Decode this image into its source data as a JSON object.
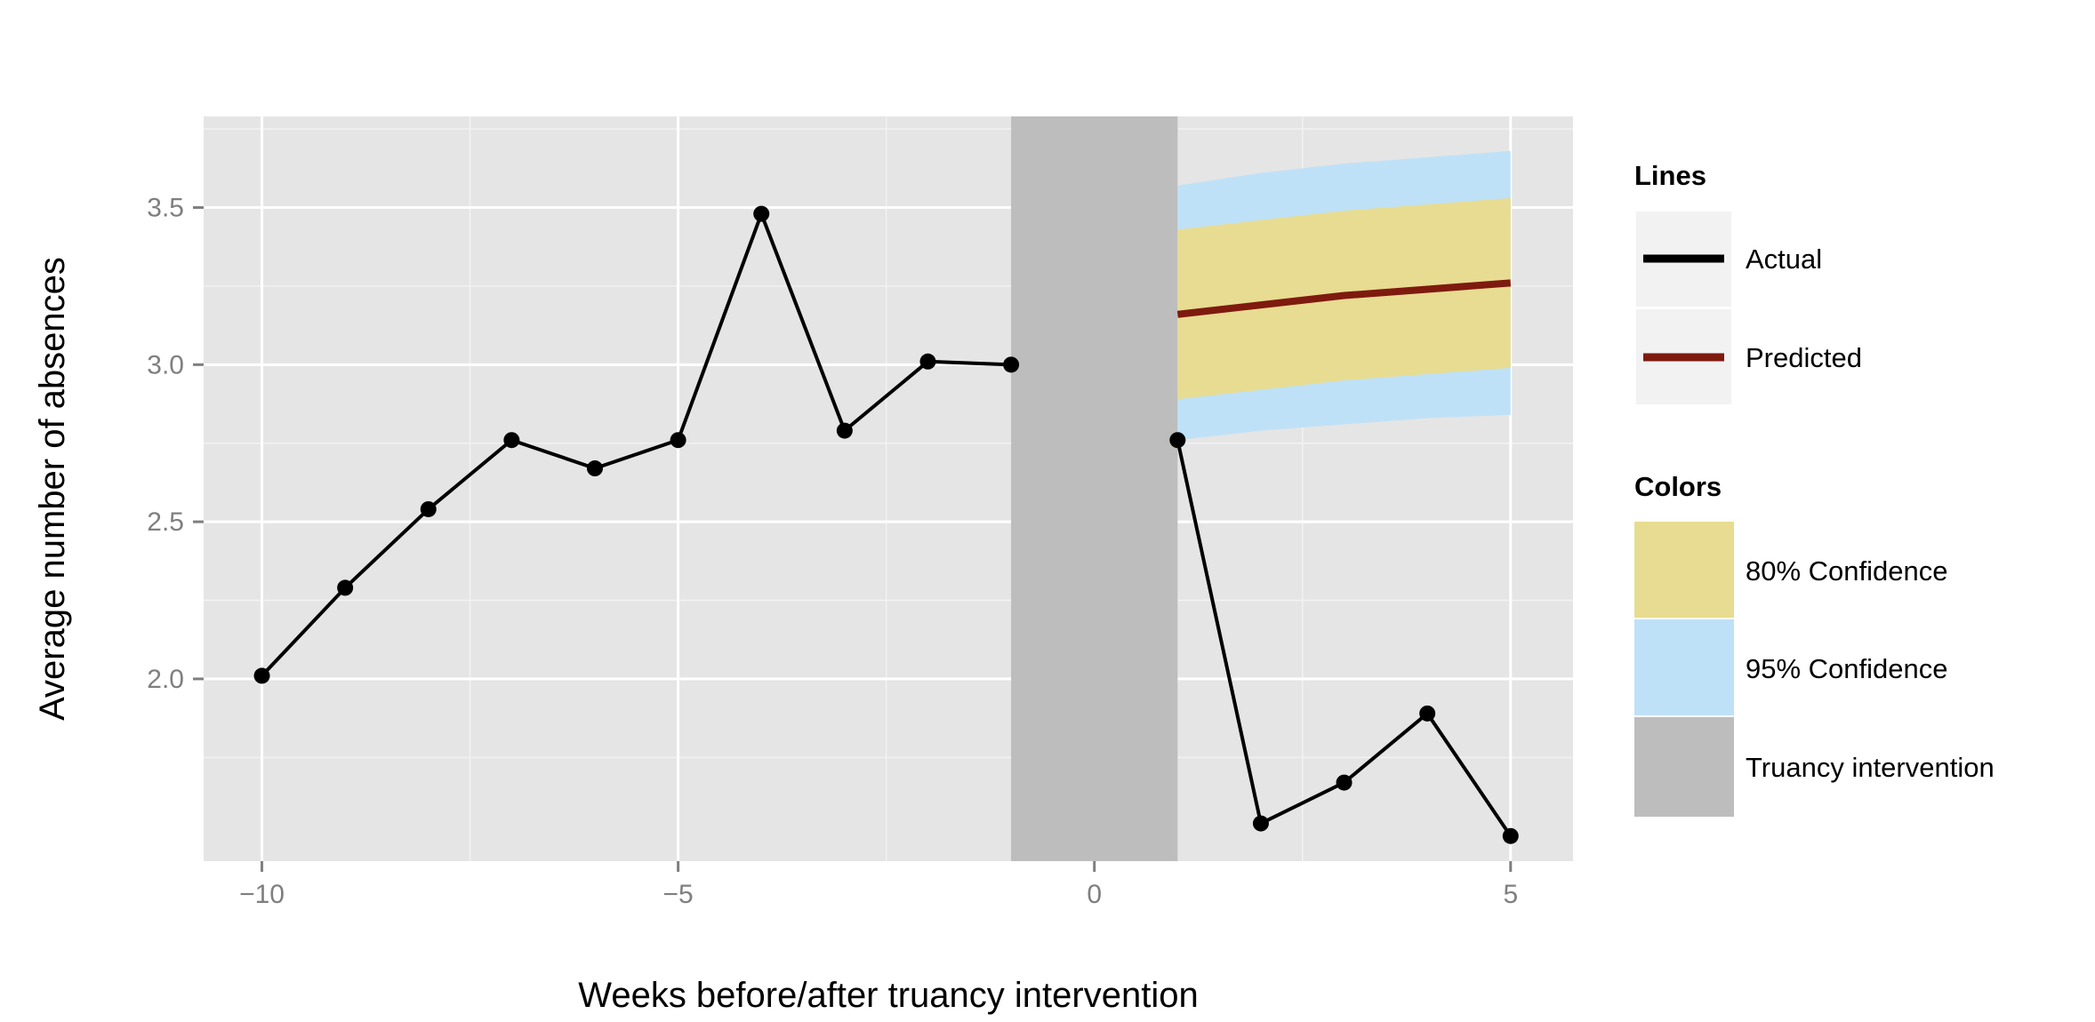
{
  "chart_data": {
    "type": "line",
    "title": "",
    "xlabel": "Weeks before/after truancy intervention",
    "ylabel": "Average number of absences",
    "xlim": [
      -10.7,
      5.75
    ],
    "ylim": [
      1.42,
      3.79
    ],
    "x_ticks": [
      -10,
      -5,
      0,
      5
    ],
    "x_tick_labels": [
      "−10",
      "−5",
      "0",
      "5"
    ],
    "y_ticks": [
      2.0,
      2.5,
      3.0,
      3.5
    ],
    "y_tick_labels": [
      "2.0",
      "2.5",
      "3.0",
      "3.5"
    ],
    "grid": true,
    "legend_placement": "right",
    "intervention_band": {
      "x": [
        -1,
        1
      ],
      "label": "Truancy intervention",
      "color": "#bdbdbd"
    },
    "series": [
      {
        "name": "Actual",
        "color": "#000000",
        "segments": [
          {
            "x": [
              -10,
              -9,
              -8,
              -7,
              -6,
              -5,
              -4,
              -3,
              -2,
              -1
            ],
            "y": [
              2.01,
              2.29,
              2.54,
              2.76,
              2.67,
              2.76,
              3.48,
              2.79,
              3.01,
              3.0
            ]
          },
          {
            "x": [
              1,
              2,
              3,
              4,
              5
            ],
            "y": [
              2.76,
              1.54,
              1.67,
              1.89,
              1.5
            ]
          }
        ]
      },
      {
        "name": "Predicted",
        "color": "#7f1a0f",
        "x": [
          1,
          2,
          3,
          4,
          5
        ],
        "y": [
          3.16,
          3.19,
          3.22,
          3.24,
          3.26
        ],
        "ci80_lower": [
          2.89,
          2.92,
          2.95,
          2.97,
          2.99
        ],
        "ci80_upper": [
          3.43,
          3.46,
          3.49,
          3.51,
          3.53
        ],
        "ci95_lower": [
          2.76,
          2.79,
          2.81,
          2.83,
          2.84
        ],
        "ci95_upper": [
          3.57,
          3.61,
          3.64,
          3.66,
          3.68
        ]
      }
    ],
    "legend": {
      "lines_title": "Lines",
      "lines": [
        {
          "label": "Actual",
          "color": "#000000"
        },
        {
          "label": "Predicted",
          "color": "#7f1a0f"
        }
      ],
      "colors_title": "Colors",
      "colors": [
        {
          "label": "80% Confidence",
          "color": "#e7dc91"
        },
        {
          "label": "95% Confidence",
          "color": "#bfe1f7"
        },
        {
          "label": "Truancy intervention",
          "color": "#bdbdbd"
        }
      ]
    }
  }
}
